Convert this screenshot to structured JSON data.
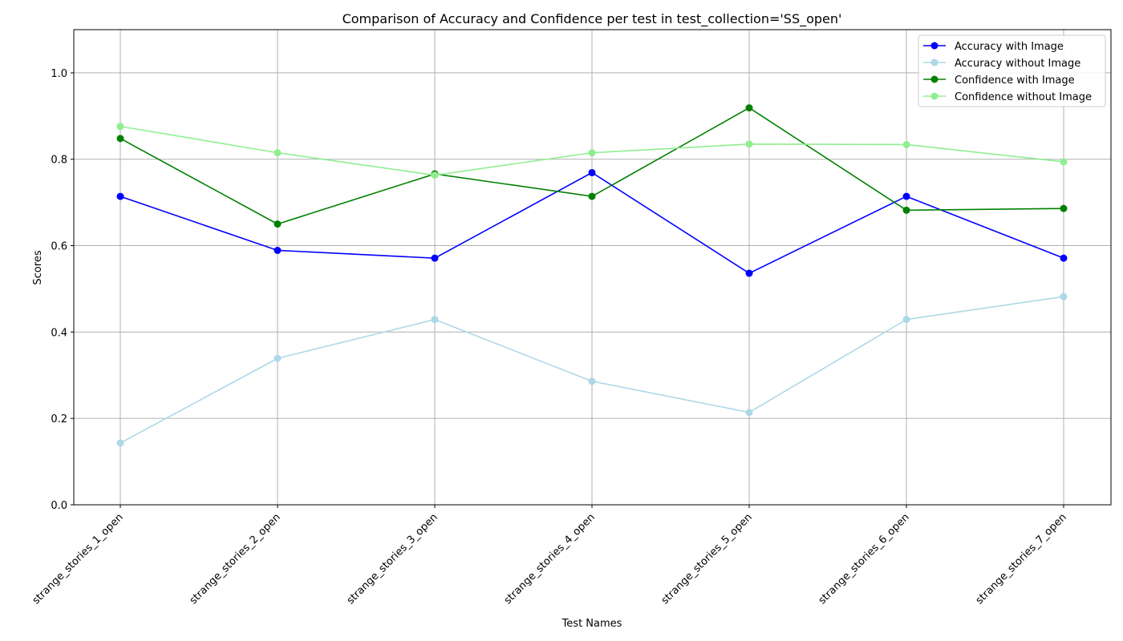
{
  "chart_data": {
    "type": "line",
    "title": "Comparison of Accuracy and Confidence per test in test_collection='SS_open'",
    "xlabel": "Test Names",
    "ylabel": "Scores",
    "ylim": [
      0,
      1.1
    ],
    "yticks": [
      0.0,
      0.2,
      0.4,
      0.6,
      0.8,
      1.0
    ],
    "ytick_labels": [
      "0.0",
      "0.2",
      "0.4",
      "0.6",
      "0.8",
      "1.0"
    ],
    "grid": true,
    "legend_position": "top-right",
    "categories": [
      "strange_stories_1_open",
      "strange_stories_2_open",
      "strange_stories_3_open",
      "strange_stories_4_open",
      "strange_stories_5_open",
      "strange_stories_6_open",
      "strange_stories_7_open"
    ],
    "series": [
      {
        "name": "Accuracy with Image",
        "color": "#0000ff",
        "values": [
          0.714,
          0.589,
          0.571,
          0.769,
          0.536,
          0.714,
          0.571
        ]
      },
      {
        "name": "Accuracy without Image",
        "color": "#add8e6",
        "values": [
          0.143,
          0.339,
          0.429,
          0.286,
          0.214,
          0.429,
          0.482
        ]
      },
      {
        "name": "Confidence with Image",
        "color": "#008000",
        "values": [
          0.848,
          0.65,
          0.766,
          0.714,
          0.919,
          0.682,
          0.686
        ]
      },
      {
        "name": "Confidence without Image",
        "color": "#90ee90",
        "values": [
          0.876,
          0.815,
          0.763,
          0.815,
          0.835,
          0.834,
          0.794
        ]
      }
    ]
  }
}
